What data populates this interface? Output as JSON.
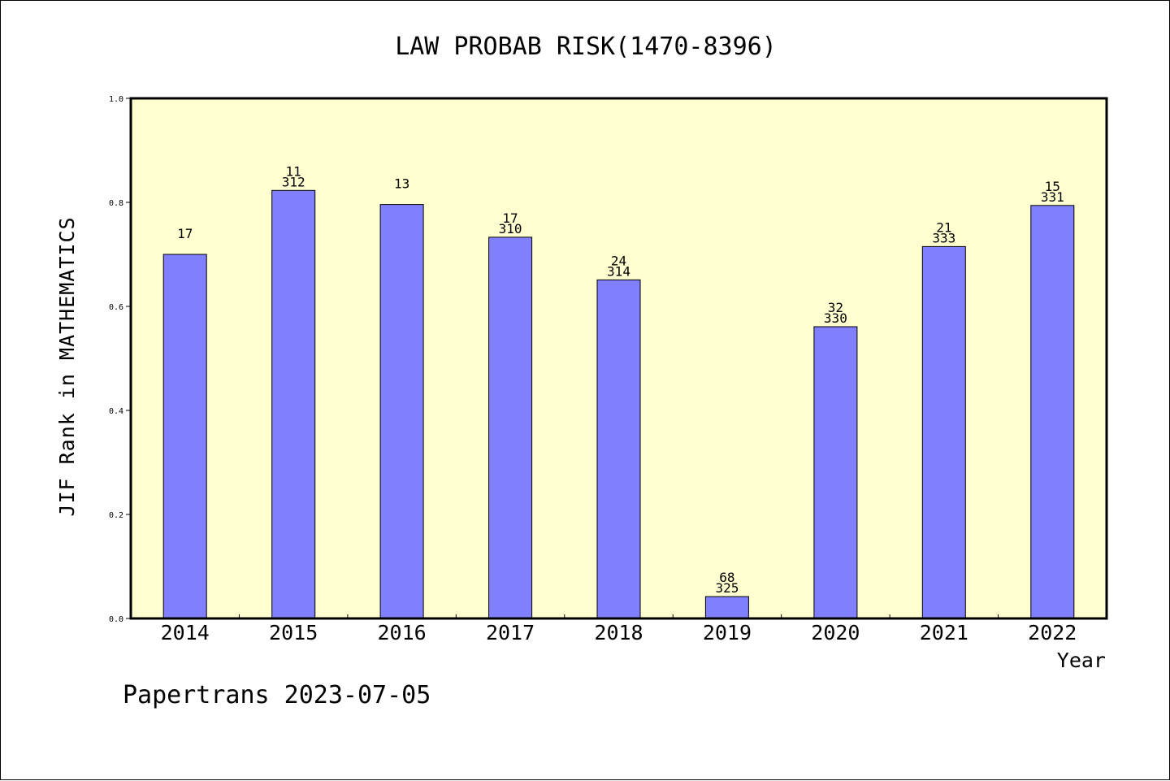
{
  "chart_data": {
    "type": "bar",
    "title": "LAW PROBAB RISK(1470-8396)",
    "xlabel": "Year",
    "ylabel": "JIF Rank in MATHEMATICS",
    "ylim": [
      0,
      1.0
    ],
    "yticks": [
      "0.0",
      "0.2",
      "0.4",
      "0.6",
      "0.8",
      "1.0"
    ],
    "grid": false,
    "categories": [
      "2014",
      "2015",
      "2016",
      "2017",
      "2018",
      "2019",
      "2020",
      "2021",
      "2022"
    ],
    "values": [
      0.7,
      0.823,
      0.796,
      0.733,
      0.651,
      0.042,
      0.561,
      0.715,
      0.794
    ],
    "rank_labels": [
      "17",
      "11",
      "13",
      "17",
      "24",
      "68",
      "32",
      "21",
      "15"
    ],
    "total_labels": [
      "",
      "312",
      "",
      "310",
      "314",
      "325",
      "330",
      "333",
      "331"
    ],
    "colors": {
      "plot_bg": "#ffffd0",
      "bar_fill": "#8080ff",
      "bar_stroke": "#000000"
    }
  },
  "footer": {
    "text": "Papertrans 2023-07-05"
  }
}
